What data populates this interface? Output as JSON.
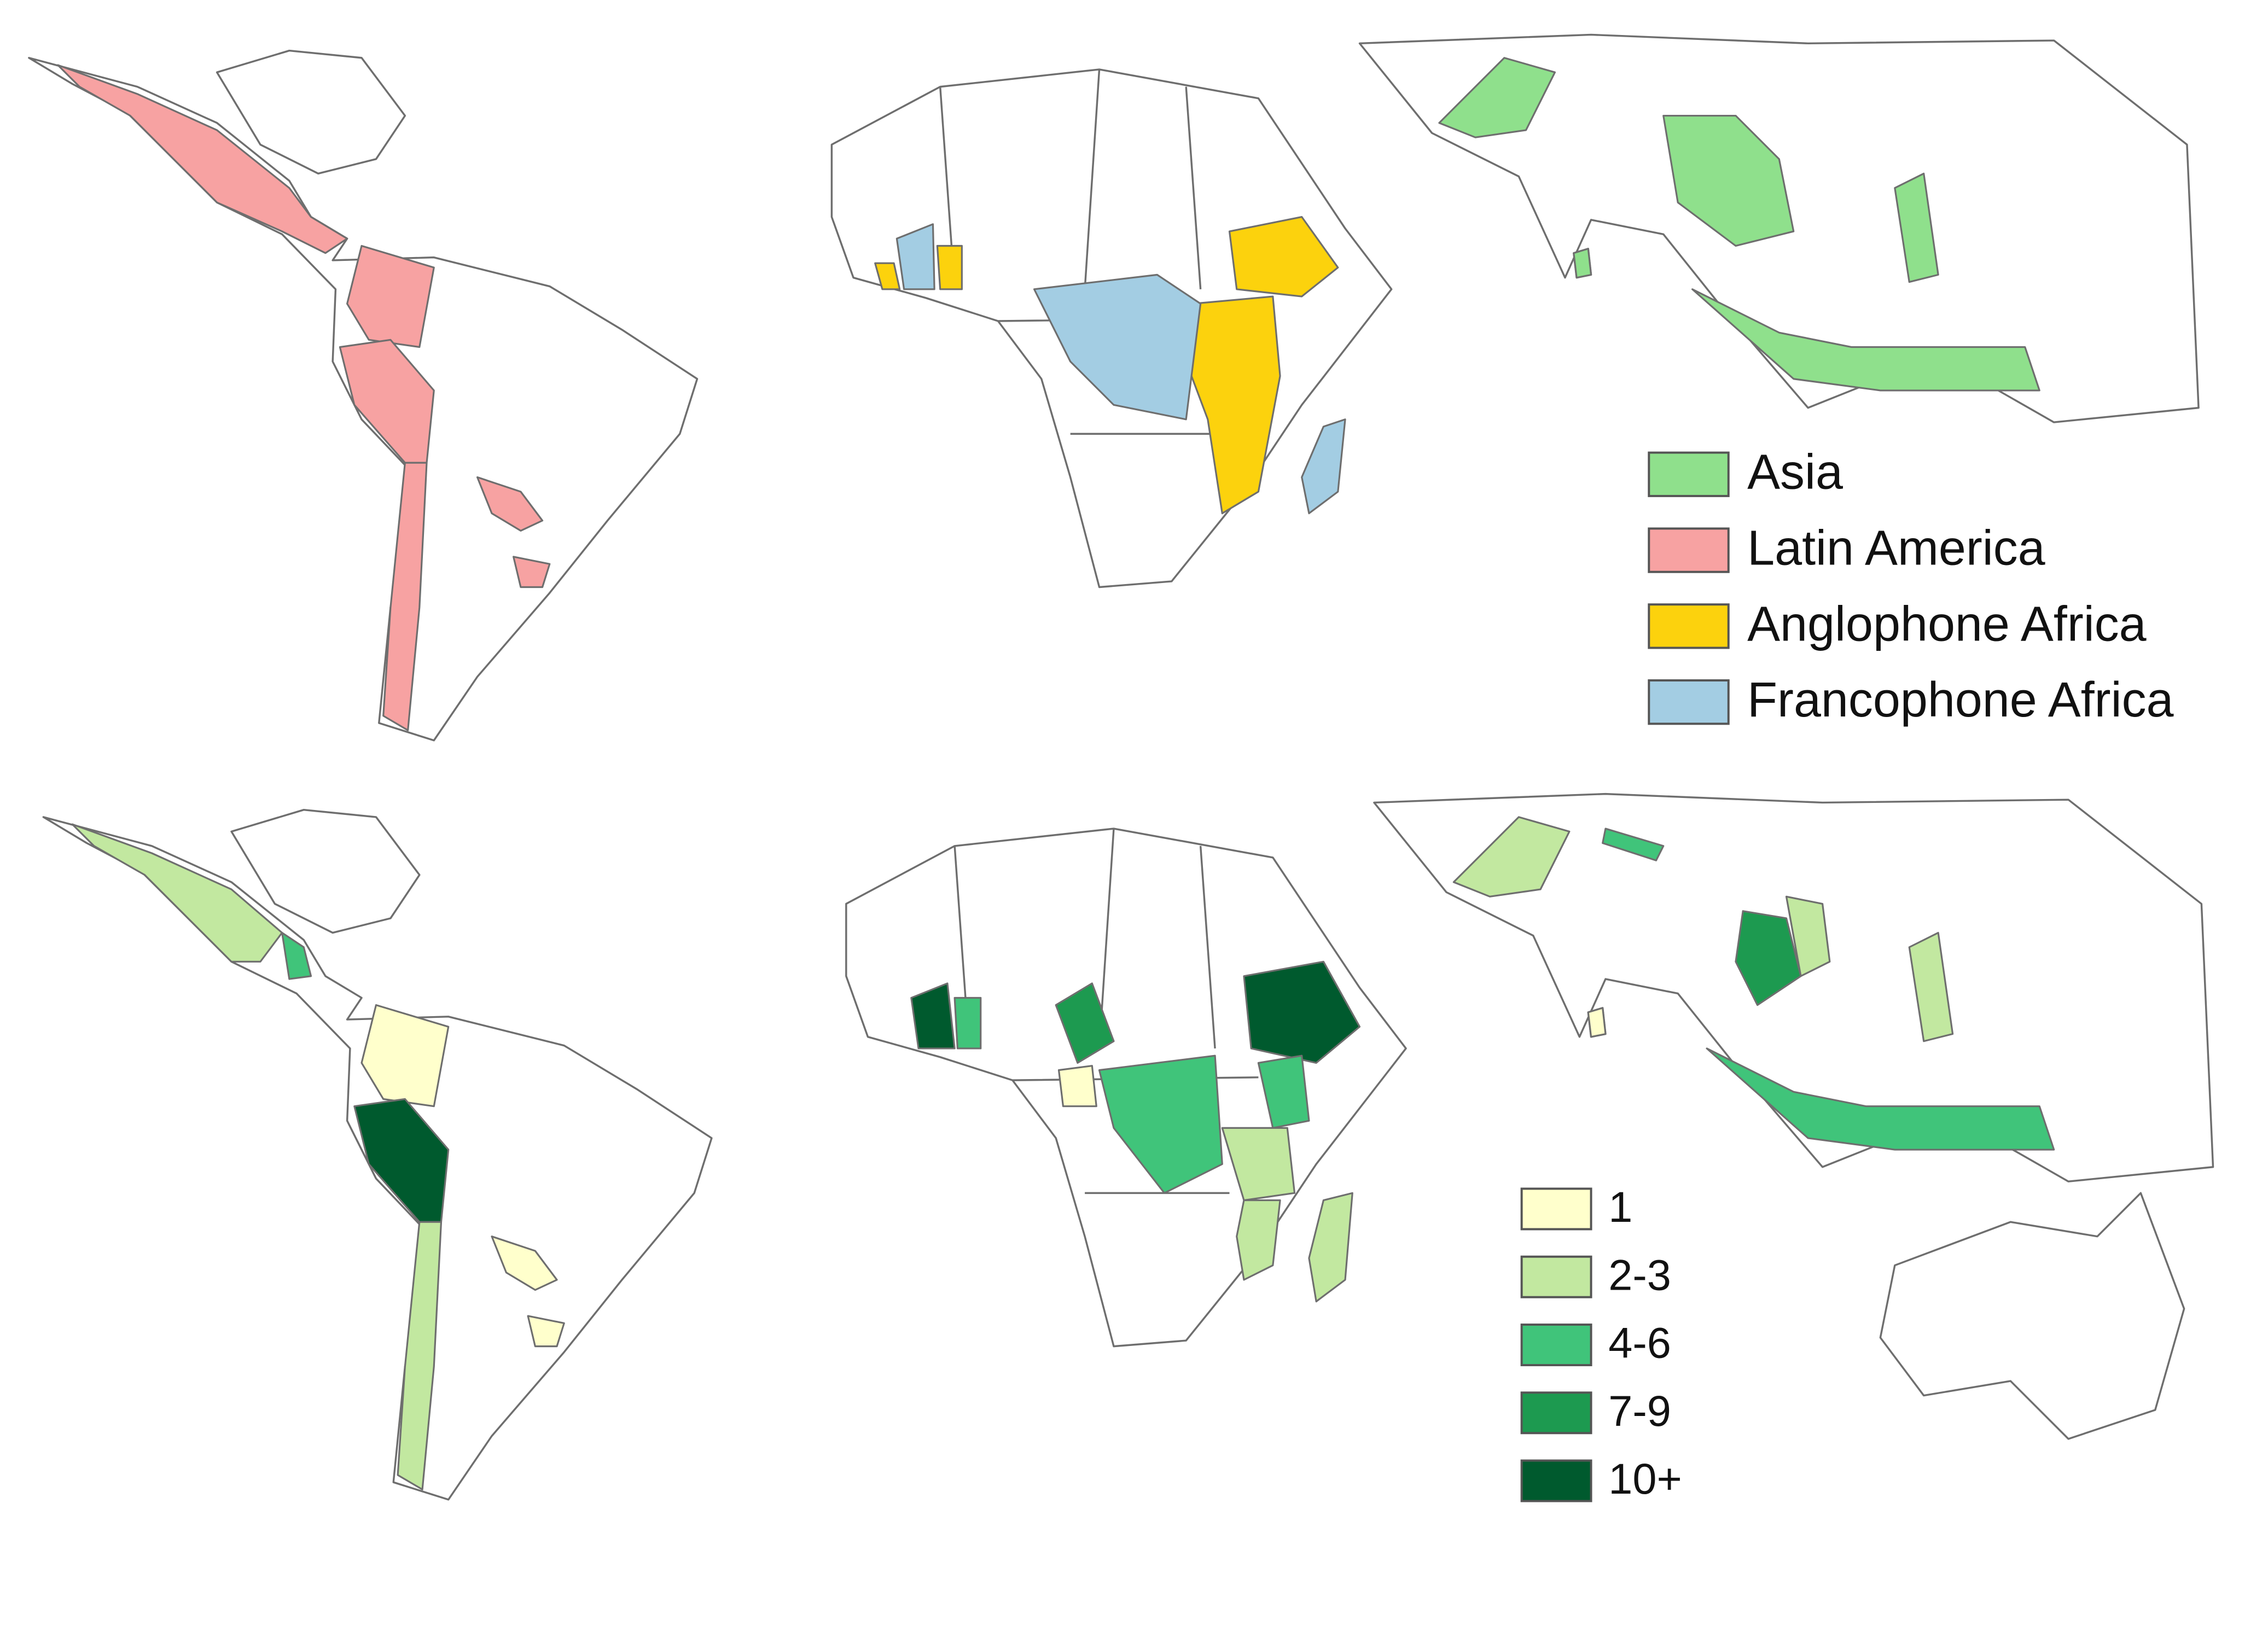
{
  "legends": [
    {
      "items": [
        {
          "label": "Asia",
          "color": "#8fe08c"
        },
        {
          "label": "Latin America",
          "color": "#f7a2a2"
        },
        {
          "label": "Anglophone Africa",
          "color": "#fcd20d"
        },
        {
          "label": "Francophone Africa",
          "color": "#a3cde3"
        }
      ]
    },
    {
      "items": [
        {
          "label": "1",
          "color": "#ffffcc"
        },
        {
          "label": "2-3",
          "color": "#c2e8a0"
        },
        {
          "label": "4-6",
          "color": "#40c47a"
        },
        {
          "label": "7-9",
          "color": "#1d9a50"
        },
        {
          "label": "10+",
          "color": "#005a2e"
        }
      ]
    }
  ]
}
